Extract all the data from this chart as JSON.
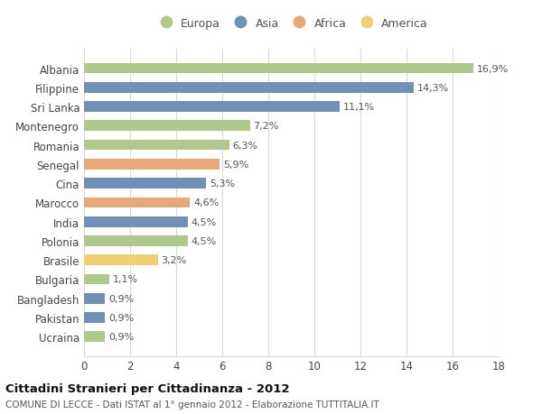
{
  "countries": [
    "Albania",
    "Filippine",
    "Sri Lanka",
    "Montenegro",
    "Romania",
    "Senegal",
    "Cina",
    "Marocco",
    "India",
    "Polonia",
    "Brasile",
    "Bulgaria",
    "Bangladesh",
    "Pakistan",
    "Ucraina"
  ],
  "values": [
    16.9,
    14.3,
    11.1,
    7.2,
    6.3,
    5.9,
    5.3,
    4.6,
    4.5,
    4.5,
    3.2,
    1.1,
    0.9,
    0.9,
    0.9
  ],
  "labels": [
    "16,9%",
    "14,3%",
    "11,1%",
    "7,2%",
    "6,3%",
    "5,9%",
    "5,3%",
    "4,6%",
    "4,5%",
    "4,5%",
    "3,2%",
    "1,1%",
    "0,9%",
    "0,9%",
    "0,9%"
  ],
  "continents": [
    "Europa",
    "Asia",
    "Asia",
    "Europa",
    "Europa",
    "Africa",
    "Asia",
    "Africa",
    "Asia",
    "Europa",
    "America",
    "Europa",
    "Asia",
    "Asia",
    "Europa"
  ],
  "colors": {
    "Europa": "#b0c98a",
    "Asia": "#7090b8",
    "Africa": "#e8a87a",
    "America": "#f0d070"
  },
  "title": "Cittadini Stranieri per Cittadinanza - 2012",
  "subtitle": "COMUNE DI LECCE - Dati ISTAT al 1° gennaio 2012 - Elaborazione TUTTITALIA.IT",
  "xlim": [
    0,
    18
  ],
  "xticks": [
    0,
    2,
    4,
    6,
    8,
    10,
    12,
    14,
    16,
    18
  ],
  "background_color": "#ffffff",
  "grid_color": "#d8d8d8",
  "bar_height": 0.55,
  "label_fontsize": 8.0,
  "ytick_fontsize": 8.5,
  "xtick_fontsize": 8.5
}
